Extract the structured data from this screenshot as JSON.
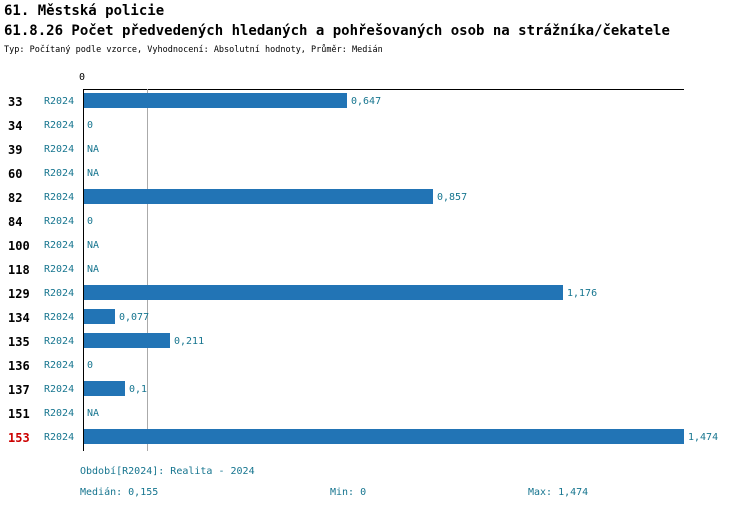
{
  "header": {
    "title": "61. Městská policie",
    "subtitle": "61.8.26 Počet předvedených hledaných a pohřešovaných osob na strážníka/čekatele",
    "meta": "Typ: Počítaný podle vzorce, Vyhodnocení: Absolutní hodnoty, Průměr: Medián"
  },
  "chart_data": {
    "type": "bar",
    "orientation": "horizontal",
    "title": "61.8.26 Počet předvedených hledaných a pohřešovaných osob na strážníka/čekatele",
    "categories": [
      "33",
      "34",
      "39",
      "60",
      "82",
      "84",
      "100",
      "118",
      "129",
      "134",
      "135",
      "136",
      "137",
      "151",
      "153"
    ],
    "series_label": "R2024",
    "values": [
      0.647,
      0,
      null,
      null,
      0.857,
      0,
      null,
      null,
      1.176,
      0.077,
      0.211,
      0,
      0.1,
      null,
      1.474
    ],
    "value_labels": [
      "0,647",
      "0",
      "NA",
      "NA",
      "0,857",
      "0",
      "NA",
      "NA",
      "1,176",
      "0,077",
      "0,211",
      "0",
      "0,1",
      "NA",
      "1,474"
    ],
    "xlim": [
      0,
      1.474
    ],
    "axis_tick": "0",
    "median": 0.155,
    "highlight_category": "153",
    "legend_position": "bottom",
    "grid": false,
    "bar_color": "#2274b5",
    "label_color": "#16758f",
    "highlight_color": "#cc0000"
  },
  "footer": {
    "period": "Období[R2024]: Realita - 2024",
    "median": "Medián: 0,155",
    "min": "Min: 0",
    "max": "Max: 1,474"
  }
}
